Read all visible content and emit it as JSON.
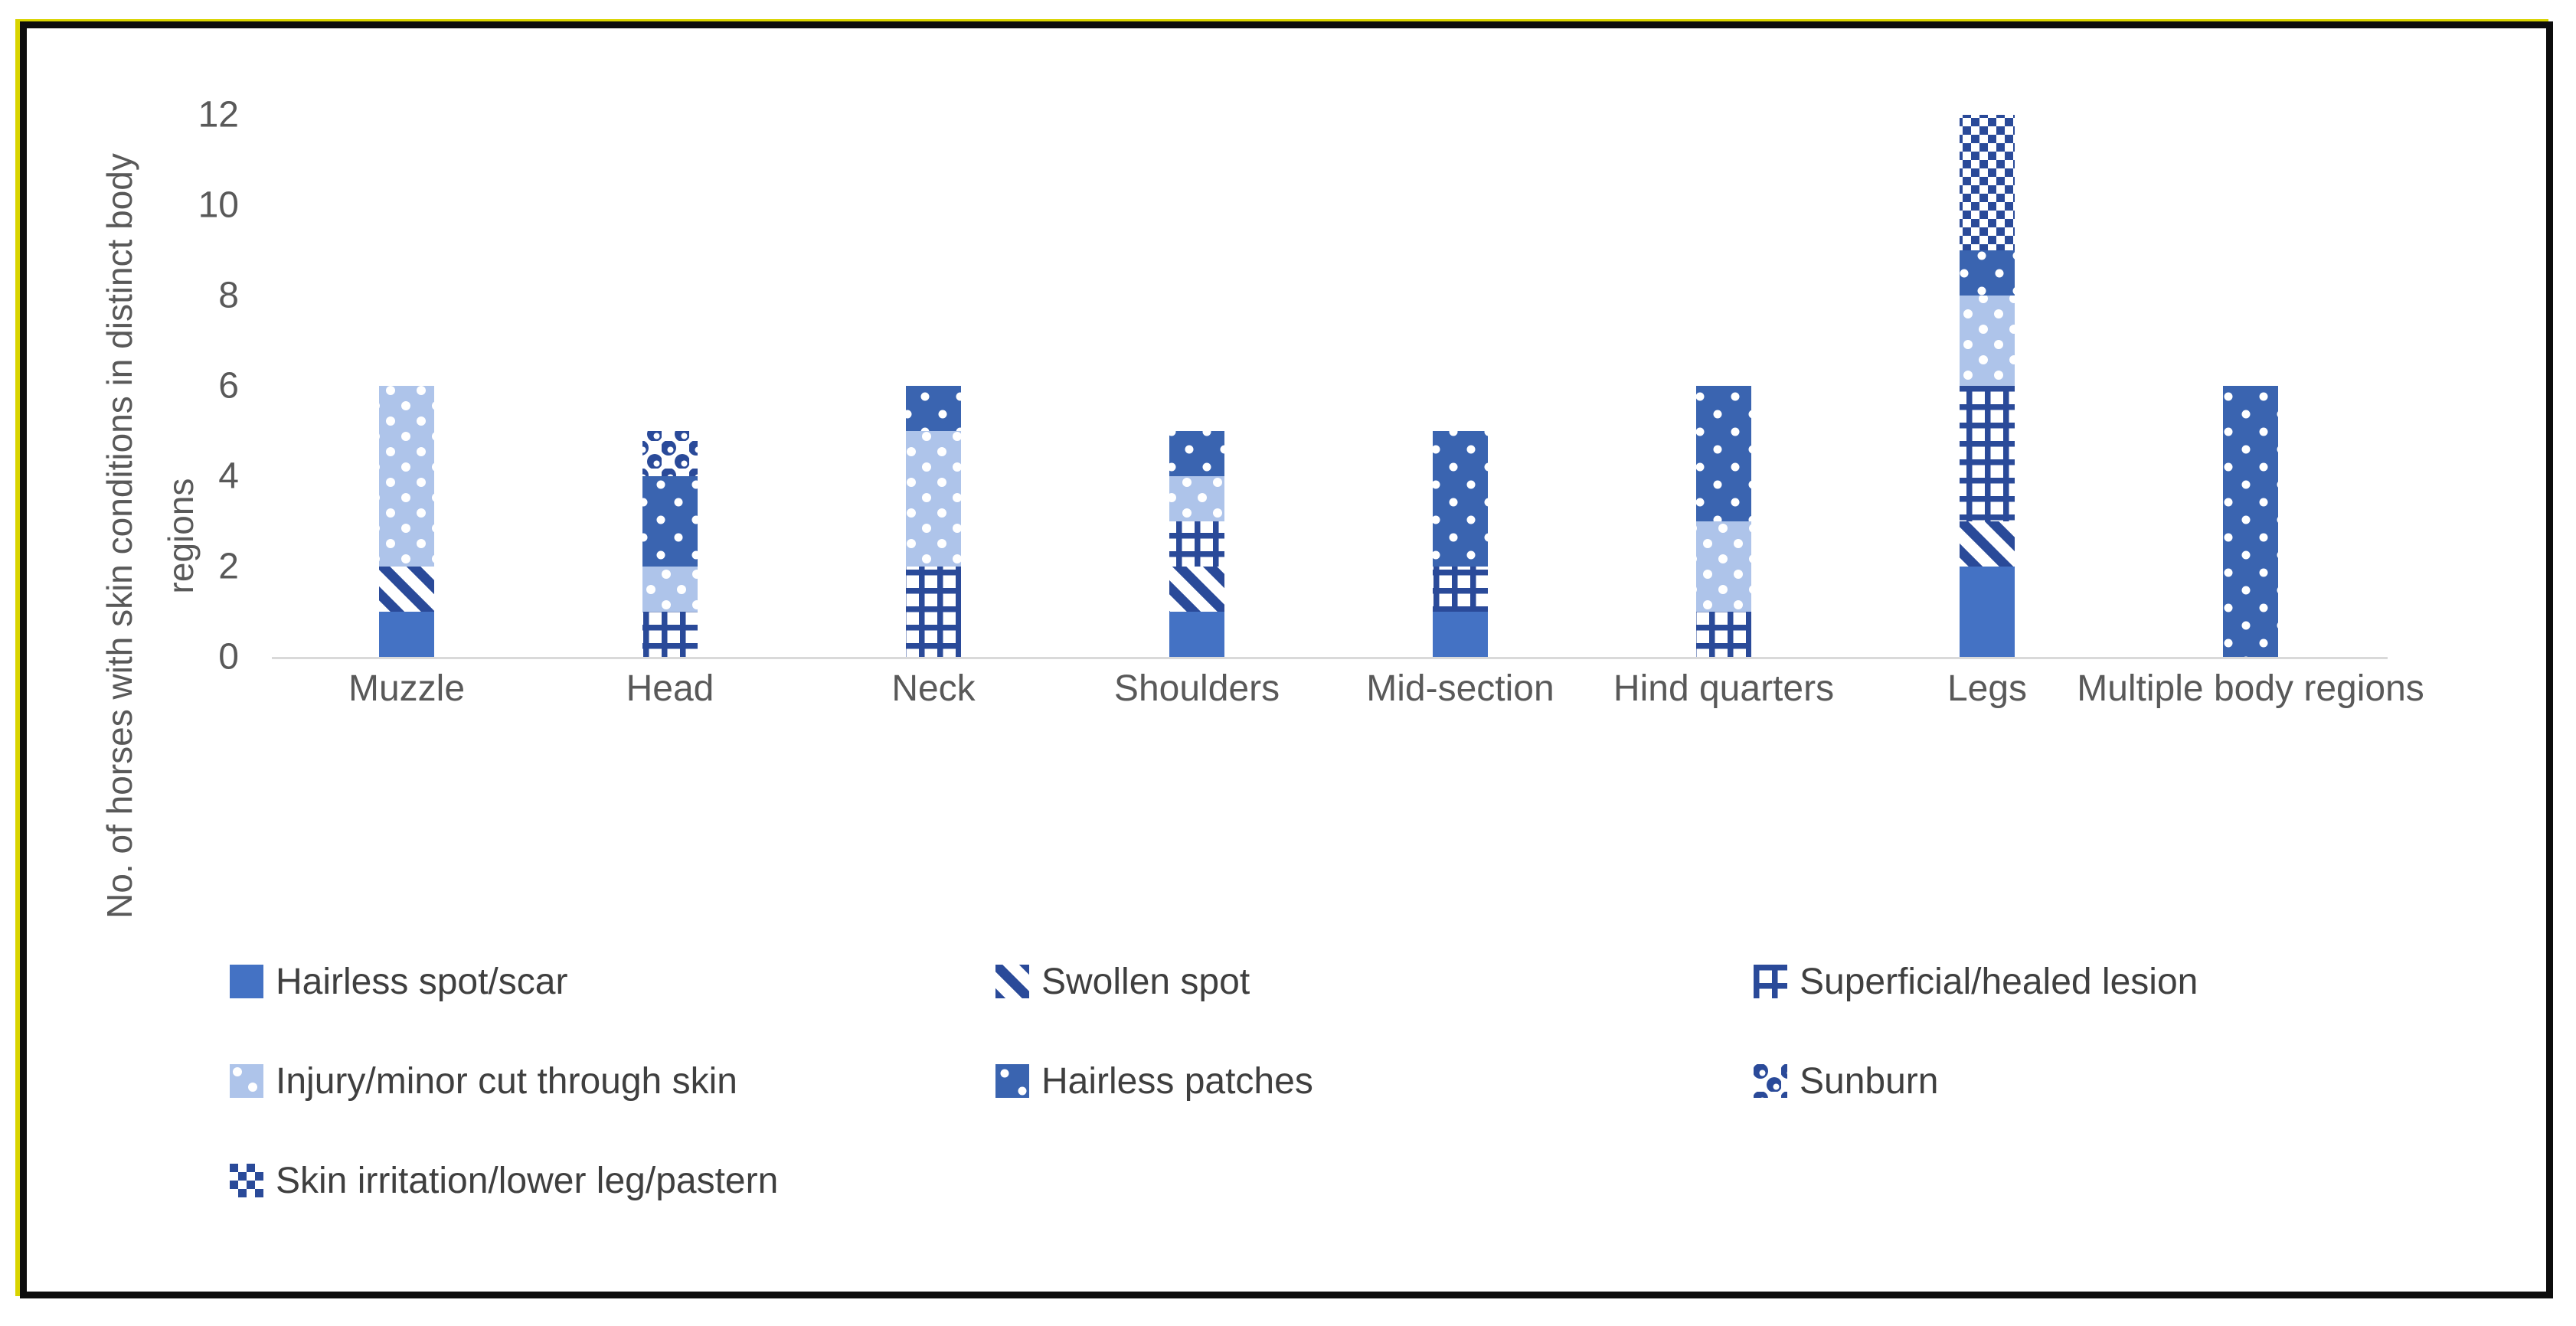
{
  "figure": {
    "frame_color": "#0d0d0d",
    "background": "#ffffff"
  },
  "chart_data": {
    "type": "bar",
    "stacked": true,
    "title": "",
    "ylabel": "No. of horses with skin conditions in distinct body regions",
    "ylabel_lines": [
      "No. of horses with skin conditions in distinct body",
      "regions"
    ],
    "xlabel": "",
    "ylim": [
      0,
      12
    ],
    "yticks": [
      0,
      2,
      4,
      6,
      8,
      10,
      12
    ],
    "grid": false,
    "legend_position": "bottom",
    "categories": [
      "Muzzle",
      "Head",
      "Neck",
      "Shoulders",
      "Mid-section",
      "Hind quarters",
      "Legs",
      "Multiple body regions"
    ],
    "series": [
      {
        "name": "Hairless spot/scar",
        "pattern": "solid",
        "values": [
          1,
          0,
          0,
          1,
          1,
          0,
          2,
          0
        ]
      },
      {
        "name": "Swollen spot",
        "pattern": "diagonal-stripe",
        "values": [
          1,
          0,
          0,
          1,
          0,
          0,
          1,
          0
        ]
      },
      {
        "name": "Superficial/healed lesion",
        "pattern": "grid",
        "values": [
          0,
          1,
          2,
          1,
          1,
          1,
          3,
          0
        ]
      },
      {
        "name": "Injury/minor cut through skin",
        "pattern": "light-dot",
        "values": [
          4,
          1,
          3,
          1,
          0,
          2,
          2,
          0
        ]
      },
      {
        "name": "Hairless patches",
        "pattern": "dark-dot",
        "values": [
          0,
          2,
          1,
          1,
          3,
          3,
          1,
          6
        ]
      },
      {
        "name": "Sunburn",
        "pattern": "sphere",
        "values": [
          0,
          1,
          0,
          0,
          0,
          0,
          0,
          0
        ]
      },
      {
        "name": "Skin irritation/lower leg/pastern",
        "pattern": "checker",
        "values": [
          0,
          0,
          0,
          0,
          0,
          0,
          3,
          0
        ]
      }
    ],
    "totals": [
      6,
      5,
      6,
      5,
      5,
      6,
      12,
      6
    ],
    "colors": {
      "primary_blue": "#4472C4",
      "pattern_navy": "#2a4a99",
      "light_blue": "#aec4ea",
      "medium_blue": "#3a64b0",
      "axis_text": "#595959",
      "legend_text": "#3f3f3f",
      "axis_line": "#d9d9d9"
    }
  }
}
